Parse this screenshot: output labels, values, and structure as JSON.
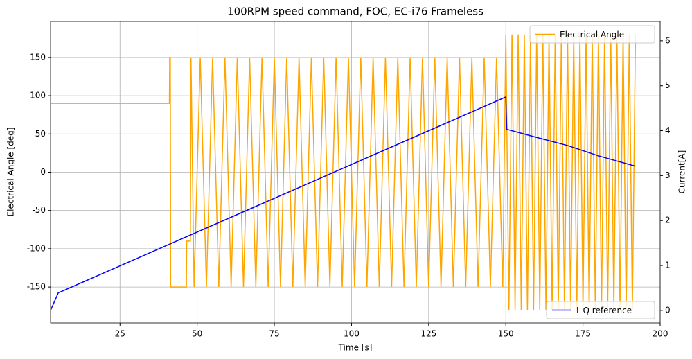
{
  "chart_data": {
    "type": "line",
    "title": "100RPM speed command, FOC, EC-i76 Frameless",
    "xlabel": "Time [s]",
    "ylabel": "Electrical Angle [deg]",
    "y2label": "Current[A]",
    "xlim": [
      2.5,
      200
    ],
    "ylim": [
      -197,
      197
    ],
    "y2lim": [
      -0.28,
      6.43
    ],
    "xticks": [
      25,
      50,
      75,
      100,
      125,
      150,
      175,
      200
    ],
    "yticks": [
      -150,
      -100,
      -50,
      0,
      50,
      100,
      150
    ],
    "y2ticks": [
      0,
      1,
      2,
      3,
      4,
      5,
      6
    ],
    "grid": true,
    "legend_loc": "upper right",
    "legend2_loc": "lower right",
    "series": [
      {
        "name": "Electrical Angle",
        "color": "#ffa500",
        "x": [
          2.5,
          41,
          41.1,
          41.3,
          41.4,
          46.5,
          46.6,
          47.8,
          48,
          49,
          51,
          53,
          55,
          57,
          59,
          61,
          63,
          65,
          67,
          69,
          71,
          73,
          75,
          77,
          79,
          81,
          83,
          85,
          87,
          89,
          91,
          93,
          95,
          97,
          99,
          101,
          103,
          105,
          107,
          109,
          111,
          113,
          115,
          117,
          119,
          121,
          123,
          125,
          127,
          129,
          131,
          133,
          135,
          137,
          139,
          141,
          143,
          145,
          147,
          149,
          150,
          151,
          152,
          153,
          154,
          155,
          156,
          157,
          158,
          159,
          160,
          161,
          162,
          163,
          164,
          165,
          166,
          167,
          168,
          169,
          170,
          171,
          172,
          173,
          174,
          175,
          176,
          177,
          178,
          179,
          180,
          181,
          182,
          183,
          184,
          185,
          186,
          187,
          188,
          189,
          190,
          191,
          192
        ],
        "values": [
          90,
          90,
          150,
          150,
          -150,
          -150,
          -90,
          -90,
          150,
          -150,
          150,
          -150,
          150,
          -150,
          150,
          -150,
          150,
          -150,
          150,
          -150,
          150,
          -150,
          150,
          -150,
          150,
          -150,
          150,
          -150,
          150,
          -150,
          150,
          -150,
          150,
          -150,
          150,
          -150,
          150,
          -150,
          150,
          -150,
          150,
          -150,
          150,
          -150,
          150,
          -150,
          150,
          -150,
          150,
          -150,
          150,
          -150,
          150,
          -150,
          150,
          -150,
          150,
          -150,
          150,
          -150,
          180,
          -180,
          180,
          -180,
          180,
          -180,
          180,
          -180,
          180,
          -180,
          180,
          -180,
          180,
          -180,
          180,
          -180,
          180,
          -180,
          180,
          -180,
          180,
          -180,
          180,
          -180,
          180,
          -180,
          180,
          -180,
          180,
          -180,
          180,
          -180,
          180,
          -180,
          180,
          -180,
          180,
          -180,
          180,
          -180,
          180,
          -180,
          180
        ]
      },
      {
        "name": "I_Q reference",
        "color": "#0000ff",
        "axis": "y2",
        "x": [
          2.5,
          2.5,
          5,
          150,
          150.3,
          160,
          170,
          180,
          192
        ],
        "values": [
          6.2,
          0,
          0.39,
          4.75,
          4.03,
          3.85,
          3.67,
          3.44,
          3.21
        ]
      }
    ]
  }
}
